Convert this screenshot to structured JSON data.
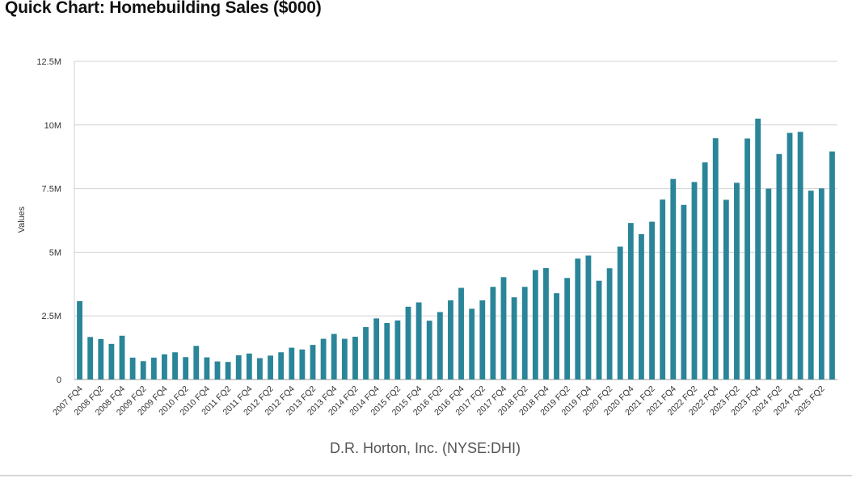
{
  "page": {
    "title": "Quick Chart: Homebuilding Sales ($000)",
    "source": "D.R. Horton, Inc. (NYSE:DHI)"
  },
  "chart_data": {
    "type": "bar",
    "title": "Quick Chart: Homebuilding Sales ($000)",
    "xlabel": "D.R. Horton, Inc. (NYSE:DHI)",
    "ylabel": "Values",
    "ylim": [
      0,
      12500000
    ],
    "yticks": [
      0,
      2500000,
      5000000,
      7500000,
      10000000,
      12500000
    ],
    "ytick_labels": [
      "0",
      "2.5M",
      "5M",
      "7.5M",
      "10M",
      "12.5M"
    ],
    "grid": true,
    "color": "#2a8598",
    "categories": [
      "2007 FQ4",
      "2008 FQ1",
      "2008 FQ2",
      "2008 FQ3",
      "2008 FQ4",
      "2009 FQ1",
      "2009 FQ2",
      "2009 FQ3",
      "2009 FQ4",
      "2010 FQ1",
      "2010 FQ2",
      "2010 FQ3",
      "2010 FQ4",
      "2011 FQ1",
      "2011 FQ2",
      "2011 FQ3",
      "2011 FQ4",
      "2012 FQ1",
      "2012 FQ2",
      "2012 FQ3",
      "2012 FQ4",
      "2013 FQ1",
      "2013 FQ2",
      "2013 FQ3",
      "2013 FQ4",
      "2014 FQ1",
      "2014 FQ2",
      "2014 FQ3",
      "2014 FQ4",
      "2015 FQ1",
      "2015 FQ2",
      "2015 FQ3",
      "2015 FQ4",
      "2016 FQ1",
      "2016 FQ2",
      "2016 FQ3",
      "2016 FQ4",
      "2017 FQ1",
      "2017 FQ2",
      "2017 FQ3",
      "2017 FQ4",
      "2018 FQ1",
      "2018 FQ2",
      "2018 FQ3",
      "2018 FQ4",
      "2019 FQ1",
      "2019 FQ2",
      "2019 FQ3",
      "2019 FQ4",
      "2020 FQ1",
      "2020 FQ2",
      "2020 FQ3",
      "2020 FQ4",
      "2021 FQ1",
      "2021 FQ2",
      "2021 FQ3",
      "2021 FQ4",
      "2022 FQ1",
      "2022 FQ2",
      "2022 FQ3",
      "2022 FQ4",
      "2023 FQ1",
      "2023 FQ2",
      "2023 FQ3",
      "2023 FQ4",
      "2024 FQ1",
      "2024 FQ2",
      "2024 FQ3",
      "2024 FQ4",
      "2025 FQ1",
      "2025 FQ2",
      "2025 FQ3"
    ],
    "tick_labels_shown": [
      "2007 FQ4",
      "2008 FQ2",
      "2008 FQ4",
      "2009 FQ2",
      "2009 FQ4",
      "2010 FQ2",
      "2010 FQ4",
      "2011 FQ2",
      "2011 FQ4",
      "2012 FQ2",
      "2012 FQ4",
      "2013 FQ2",
      "2013 FQ4",
      "2014 FQ2",
      "2014 FQ4",
      "2015 FQ2",
      "2015 FQ4",
      "2016 FQ2",
      "2016 FQ4",
      "2017 FQ2",
      "2017 FQ4",
      "2018 FQ2",
      "2018 FQ4",
      "2019 FQ2",
      "2019 FQ4",
      "2020 FQ2",
      "2020 FQ4",
      "2021 FQ2",
      "2021 FQ4",
      "2022 FQ2",
      "2022 FQ4",
      "2023 FQ2",
      "2023 FQ4",
      "2024 FQ2",
      "2024 FQ4",
      "2025 FQ2"
    ],
    "values": [
      3080000,
      1670000,
      1590000,
      1400000,
      1720000,
      860000,
      720000,
      860000,
      990000,
      1070000,
      880000,
      1320000,
      870000,
      710000,
      690000,
      950000,
      1020000,
      840000,
      940000,
      1070000,
      1250000,
      1180000,
      1360000,
      1600000,
      1790000,
      1600000,
      1680000,
      2060000,
      2400000,
      2220000,
      2320000,
      2860000,
      3030000,
      2310000,
      2650000,
      3110000,
      3600000,
      2780000,
      3110000,
      3640000,
      4020000,
      3230000,
      3640000,
      4300000,
      4380000,
      3390000,
      3990000,
      4750000,
      4870000,
      3880000,
      4370000,
      5220000,
      6150000,
      5710000,
      6200000,
      7070000,
      7880000,
      6860000,
      7760000,
      8530000,
      9480000,
      7060000,
      7730000,
      9470000,
      10250000,
      7500000,
      8860000,
      9690000,
      9730000,
      7420000,
      7510000,
      8960000
    ]
  }
}
